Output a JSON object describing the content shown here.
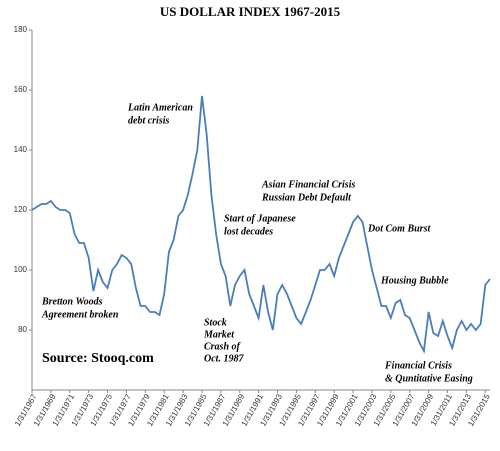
{
  "chart_data": {
    "type": "line",
    "title": "US DOLLAR INDEX  1967-2015",
    "source": "Source: Stooq.com",
    "annotations": [
      "Latin American",
      "debt crisis",
      "Asian Financial Crisis",
      "Russian Debt Default",
      "Start of Japanese",
      "lost decades",
      "Dot Com Burst",
      "Housing Bubble",
      "Bretton Woods",
      "Agreement broken",
      "Stock",
      "Market",
      "Crash of",
      "Oct. 1987",
      "Financial Crisis",
      "& Quntitative Easing"
    ],
    "x": [
      "1/31/1967",
      "7/31/1967",
      "1/31/1968",
      "7/31/1968",
      "1/31/1969",
      "7/31/1969",
      "1/31/1970",
      "7/31/1970",
      "1/31/1971",
      "7/31/1971",
      "1/31/1972",
      "7/31/1972",
      "1/31/1973",
      "7/31/1973",
      "1/31/1974",
      "7/31/1974",
      "1/31/1975",
      "7/31/1975",
      "1/31/1976",
      "7/31/1976",
      "1/31/1977",
      "7/31/1977",
      "1/31/1978",
      "7/31/1978",
      "1/31/1979",
      "7/31/1979",
      "1/31/1980",
      "7/31/1980",
      "1/31/1981",
      "7/31/1981",
      "1/31/1982",
      "7/31/1982",
      "1/31/1983",
      "7/31/1983",
      "1/31/1984",
      "7/31/1984",
      "1/31/1985",
      "7/31/1985",
      "1/31/1986",
      "7/31/1986",
      "1/31/1987",
      "7/31/1987",
      "1/31/1988",
      "7/31/1988",
      "1/31/1989",
      "7/31/1989",
      "1/31/1990",
      "7/31/1990",
      "1/31/1991",
      "7/31/1991",
      "1/31/1992",
      "7/31/1992",
      "1/31/1993",
      "7/31/1993",
      "1/31/1994",
      "7/31/1994",
      "1/31/1995",
      "7/31/1995",
      "1/31/1996",
      "7/31/1996",
      "1/31/1997",
      "7/31/1997",
      "1/31/1998",
      "7/31/1998",
      "1/31/1999",
      "7/31/1999",
      "1/31/2000",
      "7/31/2000",
      "1/31/2001",
      "7/31/2001",
      "1/31/2002",
      "7/31/2002",
      "1/31/2003",
      "7/31/2003",
      "1/31/2004",
      "7/31/2004",
      "1/31/2005",
      "7/31/2005",
      "1/31/2006",
      "7/31/2006",
      "1/31/2007",
      "7/31/2007",
      "1/31/2008",
      "7/31/2008",
      "1/31/2009",
      "7/31/2009",
      "1/31/2010",
      "7/31/2010",
      "1/31/2011",
      "7/31/2011",
      "1/31/2012",
      "7/31/2012",
      "1/31/2013",
      "7/31/2013",
      "1/31/2014",
      "7/31/2014",
      "1/31/2015",
      "7/31/2015"
    ],
    "series": [
      {
        "name": "US Dollar Index",
        "color": "#4a7ebb",
        "values": [
          120,
          121,
          122,
          122,
          123,
          121,
          120,
          120,
          119,
          112,
          109,
          109,
          104,
          93,
          100,
          96,
          94,
          100,
          102,
          105,
          104,
          102,
          94,
          88,
          88,
          86,
          86,
          85,
          92,
          106,
          110,
          118,
          120,
          125,
          132,
          140,
          158,
          145,
          125,
          112,
          102,
          98,
          88,
          95,
          98,
          100,
          92,
          88,
          84,
          95,
          86,
          80,
          92,
          95,
          92,
          88,
          84,
          82,
          86,
          90,
          95,
          100,
          100,
          102,
          98,
          104,
          108,
          112,
          116,
          118,
          116,
          108,
          100,
          94,
          88,
          88,
          84,
          89,
          90,
          85,
          84,
          80,
          76,
          73,
          86,
          79,
          78,
          83,
          78,
          74,
          80,
          83,
          80,
          82,
          80,
          82,
          95,
          97
        ]
      }
    ],
    "xticks": [
      "1/31/1967",
      "1/31/1969",
      "1/31/1971",
      "1/31/1973",
      "1/31/1975",
      "1/31/1977",
      "1/31/1979",
      "1/31/1981",
      "1/31/1983",
      "1/31/1985",
      "1/31/1987",
      "1/31/1989",
      "1/31/1991",
      "1/31/1993",
      "1/31/1995",
      "1/31/1997",
      "1/31/1999",
      "1/31/2001",
      "1/31/2003",
      "1/31/2005",
      "1/31/2007",
      "1/31/2009",
      "1/31/2011",
      "1/31/2013",
      "1/31/2015"
    ],
    "ylim": [
      60,
      180
    ],
    "yticks": [
      80,
      100,
      120,
      140,
      160,
      180
    ],
    "grid": false
  }
}
